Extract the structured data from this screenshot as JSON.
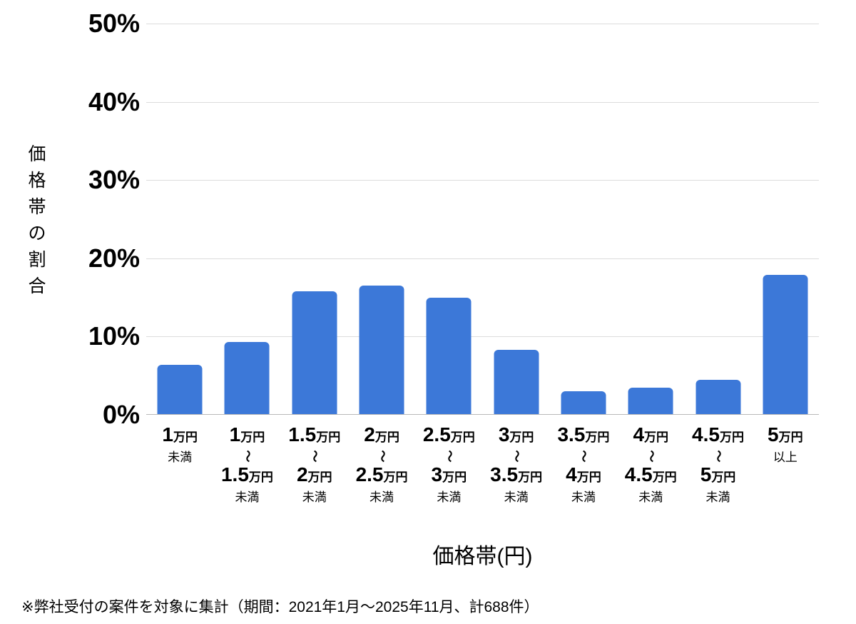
{
  "chart_data": {
    "type": "bar",
    "title": "",
    "xlabel": "価格帯(円)",
    "ylabel": "価格帯の割合",
    "ylim": [
      0,
      50
    ],
    "ytick_step": 10,
    "yticks": [
      "50%",
      "40%",
      "30%",
      "20%",
      "10%",
      "0%"
    ],
    "grid": true,
    "legend": "none",
    "bar_color": "#3c78d8",
    "gridline_color": "#dcdcdc",
    "baseline_color": "#b9b9b9",
    "categories": [
      {
        "label_lines": [
          [
            [
              "1",
              "num"
            ],
            [
              "万円",
              "unit"
            ]
          ],
          [
            [
              "未満",
              "small"
            ]
          ]
        ]
      },
      {
        "label_lines": [
          [
            [
              "1",
              "num"
            ],
            [
              "万円",
              "unit"
            ]
          ],
          [
            [
              "〜",
              "tilde"
            ]
          ],
          [
            [
              "1.5",
              "num"
            ],
            [
              "万円",
              "unit"
            ]
          ],
          [
            [
              "未満",
              "small"
            ]
          ]
        ]
      },
      {
        "label_lines": [
          [
            [
              "1.5",
              "num"
            ],
            [
              "万円",
              "unit"
            ]
          ],
          [
            [
              "〜",
              "tilde"
            ]
          ],
          [
            [
              "2",
              "num"
            ],
            [
              "万円",
              "unit"
            ]
          ],
          [
            [
              "未満",
              "small"
            ]
          ]
        ]
      },
      {
        "label_lines": [
          [
            [
              "2",
              "num"
            ],
            [
              "万円",
              "unit"
            ]
          ],
          [
            [
              "〜",
              "tilde"
            ]
          ],
          [
            [
              "2.5",
              "num"
            ],
            [
              "万円",
              "unit"
            ]
          ],
          [
            [
              "未満",
              "small"
            ]
          ]
        ]
      },
      {
        "label_lines": [
          [
            [
              "2.5",
              "num"
            ],
            [
              "万円",
              "unit"
            ]
          ],
          [
            [
              "〜",
              "tilde"
            ]
          ],
          [
            [
              "3",
              "num"
            ],
            [
              "万円",
              "unit"
            ]
          ],
          [
            [
              "未満",
              "small"
            ]
          ]
        ]
      },
      {
        "label_lines": [
          [
            [
              "3",
              "num"
            ],
            [
              "万円",
              "unit"
            ]
          ],
          [
            [
              "〜",
              "tilde"
            ]
          ],
          [
            [
              "3.5",
              "num"
            ],
            [
              "万円",
              "unit"
            ]
          ],
          [
            [
              "未満",
              "small"
            ]
          ]
        ]
      },
      {
        "label_lines": [
          [
            [
              "3.5",
              "num"
            ],
            [
              "万円",
              "unit"
            ]
          ],
          [
            [
              "〜",
              "tilde"
            ]
          ],
          [
            [
              "4",
              "num"
            ],
            [
              "万円",
              "unit"
            ]
          ],
          [
            [
              "未満",
              "small"
            ]
          ]
        ]
      },
      {
        "label_lines": [
          [
            [
              "4",
              "num"
            ],
            [
              "万円",
              "unit"
            ]
          ],
          [
            [
              "〜",
              "tilde"
            ]
          ],
          [
            [
              "4.5",
              "num"
            ],
            [
              "万円",
              "unit"
            ]
          ],
          [
            [
              "未満",
              "small"
            ]
          ]
        ]
      },
      {
        "label_lines": [
          [
            [
              "4.5",
              "num"
            ],
            [
              "万円",
              "unit"
            ]
          ],
          [
            [
              "〜",
              "tilde"
            ]
          ],
          [
            [
              "5",
              "num"
            ],
            [
              "万円",
              "unit"
            ]
          ],
          [
            [
              "未満",
              "small"
            ]
          ]
        ]
      },
      {
        "label_lines": [
          [
            [
              "5",
              "num"
            ],
            [
              "万円",
              "unit"
            ]
          ],
          [
            [
              "以上",
              "small"
            ]
          ]
        ]
      }
    ],
    "values": [
      6.3,
      9.2,
      15.7,
      16.4,
      14.9,
      8.2,
      2.9,
      3.4,
      4.4,
      17.8
    ]
  },
  "footnote": "※弊社受付の案件を対象に集計（期間：2021年1月〜2025年11月、計688件）"
}
